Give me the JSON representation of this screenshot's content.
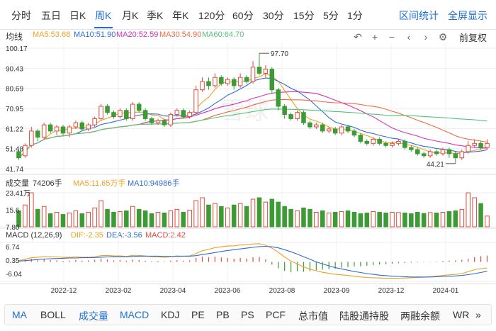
{
  "tabs": [
    {
      "label": "分时"
    },
    {
      "label": "五日"
    },
    {
      "label": "日K"
    },
    {
      "label": "周K"
    },
    {
      "label": "月K"
    },
    {
      "label": "季K"
    },
    {
      "label": "年K"
    },
    {
      "label": "120分"
    },
    {
      "label": "60分"
    },
    {
      "label": "30分"
    },
    {
      "label": "15分"
    },
    {
      "label": "5分"
    },
    {
      "label": "1分"
    }
  ],
  "active_tab": "周K",
  "links": {
    "range_stats": "区间统计",
    "fullscreen": "全屏显示"
  },
  "ma": {
    "label": "均线",
    "ma5": "MA5:53.68",
    "ma10": "MA10:51.90",
    "ma20": "MA20:52.59",
    "ma30": "MA30:54.90",
    "ma60": "MA60:64.70"
  },
  "toolbar": {
    "undo": "↶",
    "zoom_in": "+",
    "zoom_out": "−",
    "left": "‹",
    "right": "›",
    "settings": "⚙",
    "adjust": "前复权"
  },
  "colors": {
    "up": "#e04a3d",
    "down": "#3d9b35",
    "ma5": "#f0a020",
    "ma10": "#2e6bd6",
    "ma20": "#d233b8",
    "ma30": "#f06a40",
    "ma60": "#55c27a",
    "accent": "#1e6fd6"
  },
  "price_axis": [
    "100.17",
    "90.43",
    "80.69",
    "70.95",
    "61.22",
    "51.48",
    "41.74"
  ],
  "price_marks": {
    "high": "97.70",
    "low": "44.21"
  },
  "volume": {
    "title": "成交量",
    "value": "74206手",
    "ma5": "MA5:11.65万手",
    "ma10": "MA10:94986手",
    "axis": [
      "23.41万",
      "15.6",
      "7.80"
    ]
  },
  "macd": {
    "title": "MACD (12,26,9)",
    "dif": "DIF:-2.35",
    "dea": "DEA:-3.56",
    "macd": "MACD:2.42",
    "axis": [
      "6.74",
      "0.35",
      "-6.04"
    ]
  },
  "x_axis": [
    "2022-12",
    "2023-02",
    "2023-04",
    "2023-06",
    "2023-08",
    "2023-09",
    "2023-12",
    "2024-01"
  ],
  "indicators": [
    {
      "label": "MA"
    },
    {
      "label": "BOLL"
    },
    {
      "label": "成交量"
    },
    {
      "label": "MACD"
    },
    {
      "label": "KDJ"
    },
    {
      "label": "PE"
    },
    {
      "label": "PB"
    },
    {
      "label": "PS"
    },
    {
      "label": "PCF"
    },
    {
      "label": "总市值"
    },
    {
      "label": "陆股通持股"
    },
    {
      "label": "两融余额"
    },
    {
      "label": "WR"
    }
  ],
  "indicator_more": "»",
  "watermark": "雪球",
  "chart_data": {
    "type": "candlestick",
    "ylim": [
      41.74,
      100.17
    ],
    "candles": [
      [
        50,
        47,
        51,
        46
      ],
      [
        48,
        53,
        54,
        47
      ],
      [
        53,
        60,
        62,
        52
      ],
      [
        60,
        57,
        61,
        55
      ],
      [
        57,
        63,
        64,
        56
      ],
      [
        63,
        60,
        64,
        59
      ],
      [
        60,
        62,
        63,
        58
      ],
      [
        62,
        59,
        63,
        58
      ],
      [
        59,
        62,
        63,
        57
      ],
      [
        62,
        64,
        65,
        61
      ],
      [
        64,
        61,
        65,
        60
      ],
      [
        61,
        63,
        64,
        60
      ],
      [
        63,
        66,
        67,
        62
      ],
      [
        66,
        72,
        73,
        65
      ],
      [
        72,
        69,
        73,
        68
      ],
      [
        69,
        67,
        70,
        66
      ],
      [
        67,
        70,
        71,
        66
      ],
      [
        70,
        66,
        71,
        65
      ],
      [
        66,
        73,
        74,
        65
      ],
      [
        73,
        70,
        74,
        69
      ],
      [
        70,
        66,
        71,
        65
      ],
      [
        66,
        64,
        67,
        63
      ],
      [
        64,
        65,
        66,
        63
      ],
      [
        65,
        63,
        66,
        62
      ],
      [
        63,
        68,
        69,
        62
      ],
      [
        68,
        70,
        71,
        67
      ],
      [
        70,
        67,
        71,
        66
      ],
      [
        67,
        69,
        70,
        66
      ],
      [
        69,
        80,
        82,
        68
      ],
      [
        80,
        84,
        86,
        79
      ],
      [
        84,
        82,
        86,
        80
      ],
      [
        82,
        86,
        88,
        81
      ],
      [
        86,
        83,
        87,
        82
      ],
      [
        83,
        85,
        86,
        82
      ],
      [
        85,
        82,
        86,
        80
      ],
      [
        82,
        86,
        88,
        81
      ],
      [
        86,
        84,
        87,
        83
      ],
      [
        84,
        91,
        94,
        83
      ],
      [
        91,
        88,
        97.7,
        87
      ],
      [
        88,
        90,
        92,
        86
      ],
      [
        90,
        80,
        91,
        78
      ],
      [
        80,
        72,
        81,
        70
      ],
      [
        72,
        68,
        73,
        66
      ],
      [
        68,
        66,
        69,
        65
      ],
      [
        66,
        69,
        70,
        65
      ],
      [
        69,
        64,
        70,
        63
      ],
      [
        64,
        62,
        65,
        61
      ],
      [
        62,
        63,
        64,
        61
      ],
      [
        63,
        60,
        64,
        59
      ],
      [
        60,
        61,
        62,
        59
      ],
      [
        61,
        59,
        62,
        58
      ],
      [
        59,
        62,
        63,
        58
      ],
      [
        62,
        60,
        63,
        59
      ],
      [
        60,
        58,
        61,
        57
      ],
      [
        58,
        55,
        59,
        54
      ],
      [
        55,
        54,
        56,
        53
      ],
      [
        54,
        56,
        57,
        53
      ],
      [
        56,
        54,
        57,
        53
      ],
      [
        54,
        53,
        55,
        52
      ],
      [
        53,
        54,
        55,
        52
      ],
      [
        54,
        55,
        56,
        53
      ],
      [
        55,
        52,
        56,
        51
      ],
      [
        52,
        51,
        53,
        50
      ],
      [
        51,
        49,
        52,
        48
      ],
      [
        49,
        48,
        50,
        47
      ],
      [
        48,
        50,
        51,
        47
      ],
      [
        50,
        49,
        51,
        48
      ],
      [
        49,
        51,
        52,
        48
      ],
      [
        51,
        49,
        52,
        47
      ],
      [
        49,
        47,
        50,
        44.21
      ],
      [
        47,
        50,
        51,
        46
      ],
      [
        50,
        53,
        55,
        49
      ],
      [
        53,
        54,
        56,
        52
      ],
      [
        54,
        52,
        55,
        51
      ],
      [
        52,
        54,
        56,
        51
      ]
    ],
    "volume_max": 234100,
    "volumes": [
      110,
      150,
      234,
      120,
      140,
      90,
      100,
      85,
      95,
      110,
      90,
      100,
      130,
      180,
      120,
      100,
      105,
      110,
      140,
      120,
      110,
      90,
      100,
      95,
      110,
      120,
      100,
      115,
      180,
      200,
      150,
      160,
      140,
      130,
      150,
      160,
      140,
      190,
      200,
      170,
      190,
      170,
      140,
      120,
      110,
      130,
      120,
      100,
      110,
      95,
      100,
      105,
      110,
      100,
      90,
      95,
      105,
      100,
      95,
      100,
      98,
      95,
      90,
      100,
      92,
      98,
      95,
      100,
      105,
      110,
      120,
      234,
      200,
      160,
      74
    ],
    "macd_range": [
      -7.5,
      7.5
    ],
    "macd_bars": [
      0.5,
      0.8,
      1.2,
      0.9,
      1.0,
      0.7,
      0.6,
      0.4,
      0.5,
      0.7,
      0.5,
      0.6,
      0.8,
      1.2,
      0.9,
      0.6,
      0.7,
      0.5,
      0.9,
      0.7,
      0.5,
      0.3,
      0.4,
      0.2,
      0.5,
      0.7,
      0.5,
      0.6,
      1.5,
      2.0,
      1.8,
      2.0,
      1.7,
      1.5,
      1.2,
      1.5,
      1.2,
      1.8,
      1.9,
      1.0,
      -1.0,
      -2.5,
      -3.5,
      -4.0,
      -3.6,
      -3.8,
      -3.5,
      -3.2,
      -3.0,
      -2.8,
      -2.6,
      -2.2,
      -2.0,
      -1.8,
      -1.7,
      -1.5,
      -1.2,
      -1.0,
      -0.9,
      -0.7,
      -0.5,
      -0.4,
      -0.3,
      -0.2,
      -0.1,
      0.1,
      0.2,
      0.4,
      0.5,
      0.6,
      0.8,
      1.2,
      1.8,
      2.2,
      2.4
    ],
    "dif_line": [
      0.5,
      1.0,
      1.6,
      1.8,
      2.0,
      2.0,
      1.9,
      1.8,
      1.8,
      1.9,
      1.8,
      1.8,
      1.9,
      2.4,
      2.5,
      2.3,
      2.3,
      2.1,
      2.5,
      2.5,
      2.3,
      2.0,
      2.0,
      1.8,
      2.0,
      2.3,
      2.2,
      2.3,
      3.2,
      4.3,
      4.8,
      5.5,
      5.8,
      6.1,
      6.2,
      6.5,
      6.6,
      6.9,
      7.0,
      6.4,
      5.3,
      3.7,
      1.9,
      0.3,
      -0.8,
      -1.9,
      -2.8,
      -3.4,
      -4.0,
      -4.4,
      -4.8,
      -5.0,
      -5.2,
      -5.5,
      -5.8,
      -6.0,
      -6.1,
      -6.2,
      -6.3,
      -6.3,
      -6.3,
      -6.2,
      -6.1,
      -6.0,
      -5.9,
      -5.7,
      -5.5,
      -5.2,
      -5.0,
      -4.8,
      -4.5,
      -3.8,
      -3.0,
      -2.6,
      -2.35
    ],
    "dea_line": [
      0.3,
      0.5,
      0.7,
      0.9,
      1.1,
      1.2,
      1.3,
      1.4,
      1.5,
      1.5,
      1.6,
      1.6,
      1.7,
      1.8,
      1.9,
      2.0,
      2.0,
      2.0,
      2.1,
      2.2,
      2.2,
      2.2,
      2.2,
      2.1,
      2.1,
      2.1,
      2.2,
      2.2,
      2.4,
      2.8,
      3.2,
      3.6,
      4.0,
      4.4,
      4.7,
      5.0,
      5.3,
      5.6,
      5.9,
      6.0,
      5.8,
      5.4,
      4.7,
      3.9,
      3.0,
      2.0,
      1.0,
      0.0,
      -0.8,
      -1.5,
      -2.2,
      -2.7,
      -3.2,
      -3.7,
      -4.1,
      -4.5,
      -4.8,
      -5.1,
      -5.3,
      -5.5,
      -5.6,
      -5.7,
      -5.8,
      -5.8,
      -5.8,
      -5.8,
      -5.7,
      -5.6,
      -5.5,
      -5.4,
      -5.2,
      -4.9,
      -4.5,
      -4.1,
      -3.56
    ]
  }
}
